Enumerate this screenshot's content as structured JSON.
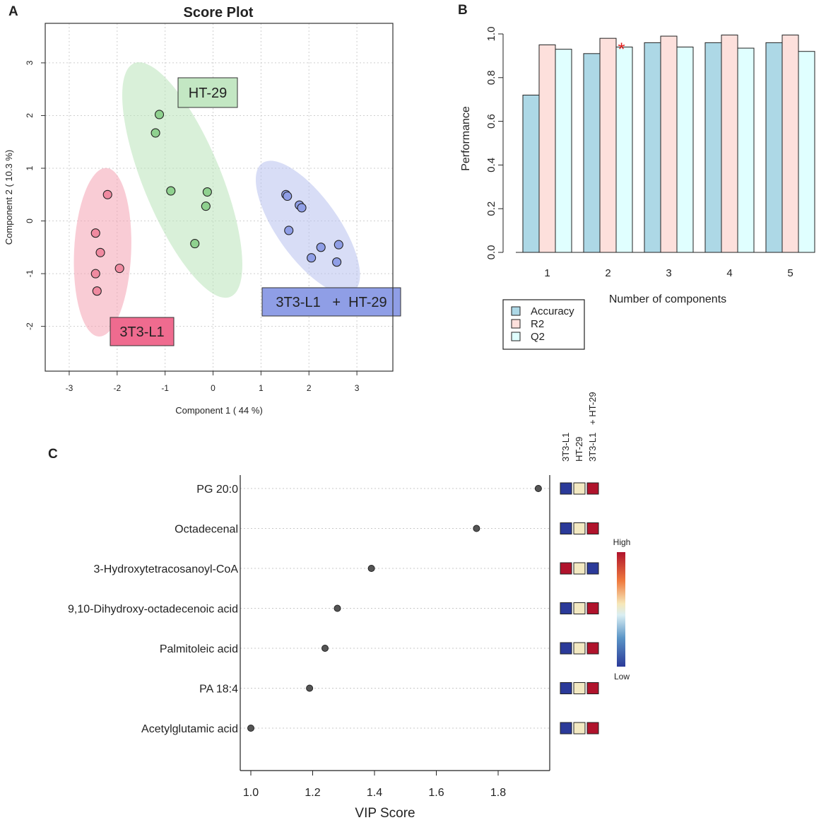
{
  "chart_data": [
    {
      "panel": "A",
      "type": "scatter",
      "title": "Score Plot",
      "xlabel": "Component 1 ( 44 %)",
      "ylabel": "Component 2 ( 10.3 %)",
      "xlim": [
        -3.5,
        3.75
      ],
      "ylim": [
        -2.85,
        3.75
      ],
      "xticks": [
        -3,
        -2,
        -1,
        0,
        1,
        2,
        3
      ],
      "yticks": [
        -2,
        -1,
        0,
        1,
        2,
        3
      ],
      "groups": [
        {
          "name": "3T3-L1",
          "color": "#f08aa0",
          "ellipse_color": "#f4a3b2",
          "label_bg": "#ef6b8f",
          "points": [
            [
              -2.2,
              0.5
            ],
            [
              -2.45,
              -0.23
            ],
            [
              -2.35,
              -0.6
            ],
            [
              -1.95,
              -0.9
            ],
            [
              -2.45,
              -1.0
            ],
            [
              -2.42,
              -1.33
            ]
          ]
        },
        {
          "name": "HT-29",
          "color": "#8fd18f",
          "ellipse_color": "#b9e3b9",
          "label_bg": "#c3e7c3",
          "points": [
            [
              -1.12,
              2.02
            ],
            [
              -1.2,
              1.67
            ],
            [
              -0.88,
              0.57
            ],
            [
              -0.12,
              0.55
            ],
            [
              -0.15,
              0.28
            ],
            [
              -0.38,
              -0.43
            ]
          ]
        },
        {
          "name": "3T3-L1   +  HT-29",
          "color": "#8f9ee6",
          "ellipse_color": "#b8c1ee",
          "label_bg": "#8f9ee6",
          "points": [
            [
              1.52,
              0.5
            ],
            [
              1.55,
              0.47
            ],
            [
              1.8,
              0.3
            ],
            [
              1.85,
              0.25
            ],
            [
              1.58,
              -0.18
            ],
            [
              2.62,
              -0.45
            ],
            [
              2.25,
              -0.5
            ],
            [
              2.05,
              -0.7
            ],
            [
              2.58,
              -0.78
            ]
          ]
        }
      ]
    },
    {
      "panel": "B",
      "type": "bar",
      "xlabel": "Number of components",
      "ylabel": "Performance",
      "ylim": [
        0,
        1.0
      ],
      "yticks": [
        "0.0",
        "0.2",
        "0.4",
        "0.6",
        "0.8",
        "1.0"
      ],
      "categories": [
        "1",
        "2",
        "3",
        "4",
        "5"
      ],
      "series": [
        {
          "name": "Accuracy",
          "color": "#add8e6",
          "values": [
            0.72,
            0.91,
            0.96,
            0.96,
            0.96
          ]
        },
        {
          "name": "R2",
          "color": "#fde0dc",
          "values": [
            0.95,
            0.98,
            0.99,
            0.995,
            0.995
          ]
        },
        {
          "name": "Q2",
          "color": "#e0ffff",
          "values": [
            0.93,
            0.94,
            0.94,
            0.935,
            0.92
          ]
        }
      ],
      "annotation": {
        "symbol": "*",
        "category": "2",
        "series": "Q2",
        "color": "#e0201f"
      }
    },
    {
      "panel": "C",
      "type": "dot",
      "xlabel": "VIP Score",
      "xlim": [
        0.97,
        1.97
      ],
      "xticks": [
        "1.0",
        "1.2",
        "1.4",
        "1.6",
        "1.8"
      ],
      "heat_columns": [
        "3T3-L1",
        "HT-29",
        "3T3-L1   + HT-29"
      ],
      "features": [
        {
          "name": "PG 20:0",
          "vip": 1.93,
          "heat": [
            "low",
            "mid",
            "high"
          ]
        },
        {
          "name": "Octadecenal",
          "vip": 1.73,
          "heat": [
            "low",
            "mid",
            "high"
          ]
        },
        {
          "name": "3-Hydroxytetracosanoyl-CoA",
          "vip": 1.39,
          "heat": [
            "high",
            "mid",
            "low"
          ]
        },
        {
          "name": "9,10-Dihydroxy-octadecenoic acid",
          "vip": 1.28,
          "heat": [
            "low",
            "mid",
            "high"
          ]
        },
        {
          "name": "Palmitoleic acid",
          "vip": 1.24,
          "heat": [
            "low",
            "mid",
            "high"
          ]
        },
        {
          "name": "PA 18:4",
          "vip": 1.19,
          "heat": [
            "low",
            "mid",
            "high"
          ]
        },
        {
          "name": "Acetylglutamic acid",
          "vip": 1.0,
          "heat": [
            "low",
            "mid",
            "high"
          ]
        }
      ],
      "heat_colors": {
        "low": "#2b3a99",
        "mid": "#f3e9c2",
        "high": "#b0132c"
      },
      "colorbar": {
        "high_label": "High",
        "low_label": "Low"
      }
    }
  ],
  "panels": {
    "a": "A",
    "b": "B",
    "c": "C"
  }
}
